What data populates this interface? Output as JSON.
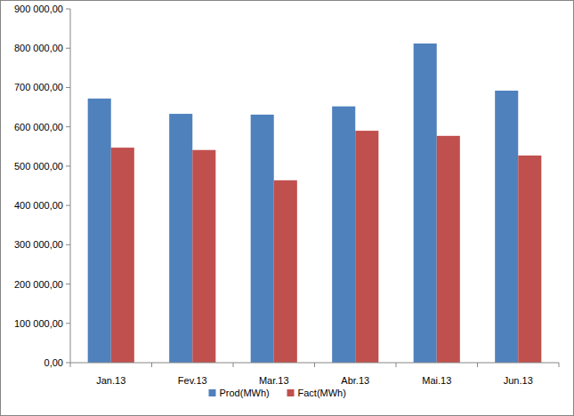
{
  "chart_data": {
    "type": "bar",
    "categories": [
      "Jan.13",
      "Fev.13",
      "Mar.13",
      "Abr.13",
      "Mai.13",
      "Jun.13"
    ],
    "series": [
      {
        "name": "Prod(MWh)",
        "color": "#4f81bd",
        "values": [
          672000,
          633000,
          631000,
          652000,
          812000,
          692000
        ]
      },
      {
        "name": "Fact(MWh)",
        "color": "#c0504d",
        "values": [
          547000,
          541000,
          464000,
          590000,
          577000,
          527000
        ]
      }
    ],
    "ylim": [
      0,
      900000
    ],
    "yticks": [
      {
        "value": 0,
        "label": "0,00"
      },
      {
        "value": 100000,
        "label": "100 000,00"
      },
      {
        "value": 200000,
        "label": "200 000,00"
      },
      {
        "value": 300000,
        "label": "300 000,00"
      },
      {
        "value": 400000,
        "label": "400 000,00"
      },
      {
        "value": 500000,
        "label": "500 000,00"
      },
      {
        "value": 600000,
        "label": "600 000,00"
      },
      {
        "value": 700000,
        "label": "700 000,00"
      },
      {
        "value": 800000,
        "label": "800 000,00"
      },
      {
        "value": 900000,
        "label": "900 000,00"
      }
    ],
    "grid": false,
    "legend": "bottom"
  }
}
